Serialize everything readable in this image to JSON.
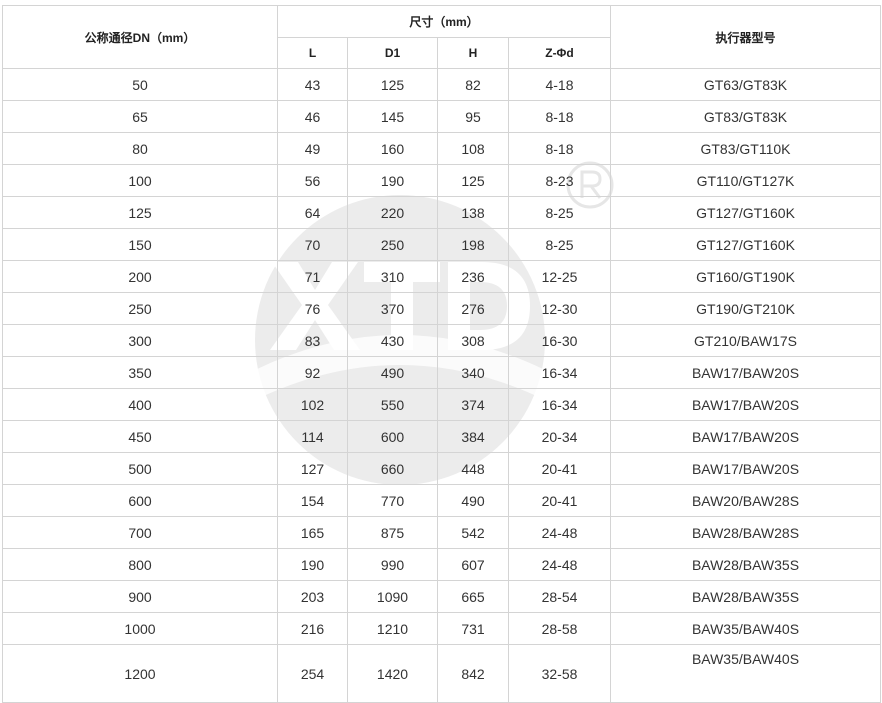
{
  "header": {
    "dn": "公称通径DN（mm）",
    "size": "尺寸（mm）",
    "actuator": "执行器型号",
    "sub": [
      "L",
      "D1",
      "H",
      "Z-Φd"
    ]
  },
  "watermark": {
    "text": "XTD",
    "mark": "®"
  },
  "rows": [
    [
      "50",
      "43",
      "125",
      "82",
      "4-18",
      "GT63/GT83K"
    ],
    [
      "65",
      "46",
      "145",
      "95",
      "8-18",
      "GT83/GT83K"
    ],
    [
      "80",
      "49",
      "160",
      "108",
      "8-18",
      "GT83/GT110K"
    ],
    [
      "100",
      "56",
      "190",
      "125",
      "8-23",
      "GT110/GT127K"
    ],
    [
      "125",
      "64",
      "220",
      "138",
      "8-25",
      "GT127/GT160K"
    ],
    [
      "150",
      "70",
      "250",
      "198",
      "8-25",
      "GT127/GT160K"
    ],
    [
      "200",
      "71",
      "310",
      "236",
      "12-25",
      "GT160/GT190K"
    ],
    [
      "250",
      "76",
      "370",
      "276",
      "12-30",
      "GT190/GT210K"
    ],
    [
      "300",
      "83",
      "430",
      "308",
      "16-30",
      "GT210/BAW17S"
    ],
    [
      "350",
      "92",
      "490",
      "340",
      "16-34",
      "BAW17/BAW20S"
    ],
    [
      "400",
      "102",
      "550",
      "374",
      "16-34",
      "BAW17/BAW20S"
    ],
    [
      "450",
      "114",
      "600",
      "384",
      "20-34",
      "BAW17/BAW20S"
    ],
    [
      "500",
      "127",
      "660",
      "448",
      "20-41",
      "BAW17/BAW20S"
    ],
    [
      "600",
      "154",
      "770",
      "490",
      "20-41",
      "BAW20/BAW28S"
    ],
    [
      "700",
      "165",
      "875",
      "542",
      "24-48",
      "BAW28/BAW28S"
    ],
    [
      "800",
      "190",
      "990",
      "607",
      "24-48",
      "BAW28/BAW35S"
    ],
    [
      "900",
      "203",
      "1090",
      "665",
      "28-54",
      "BAW28/BAW35S"
    ],
    [
      "1000",
      "216",
      "1210",
      "731",
      "28-58",
      "BAW35/BAW40S"
    ],
    [
      "1200",
      "254",
      "1420",
      "842",
      "32-58",
      "BAW35/BAW40S"
    ]
  ]
}
